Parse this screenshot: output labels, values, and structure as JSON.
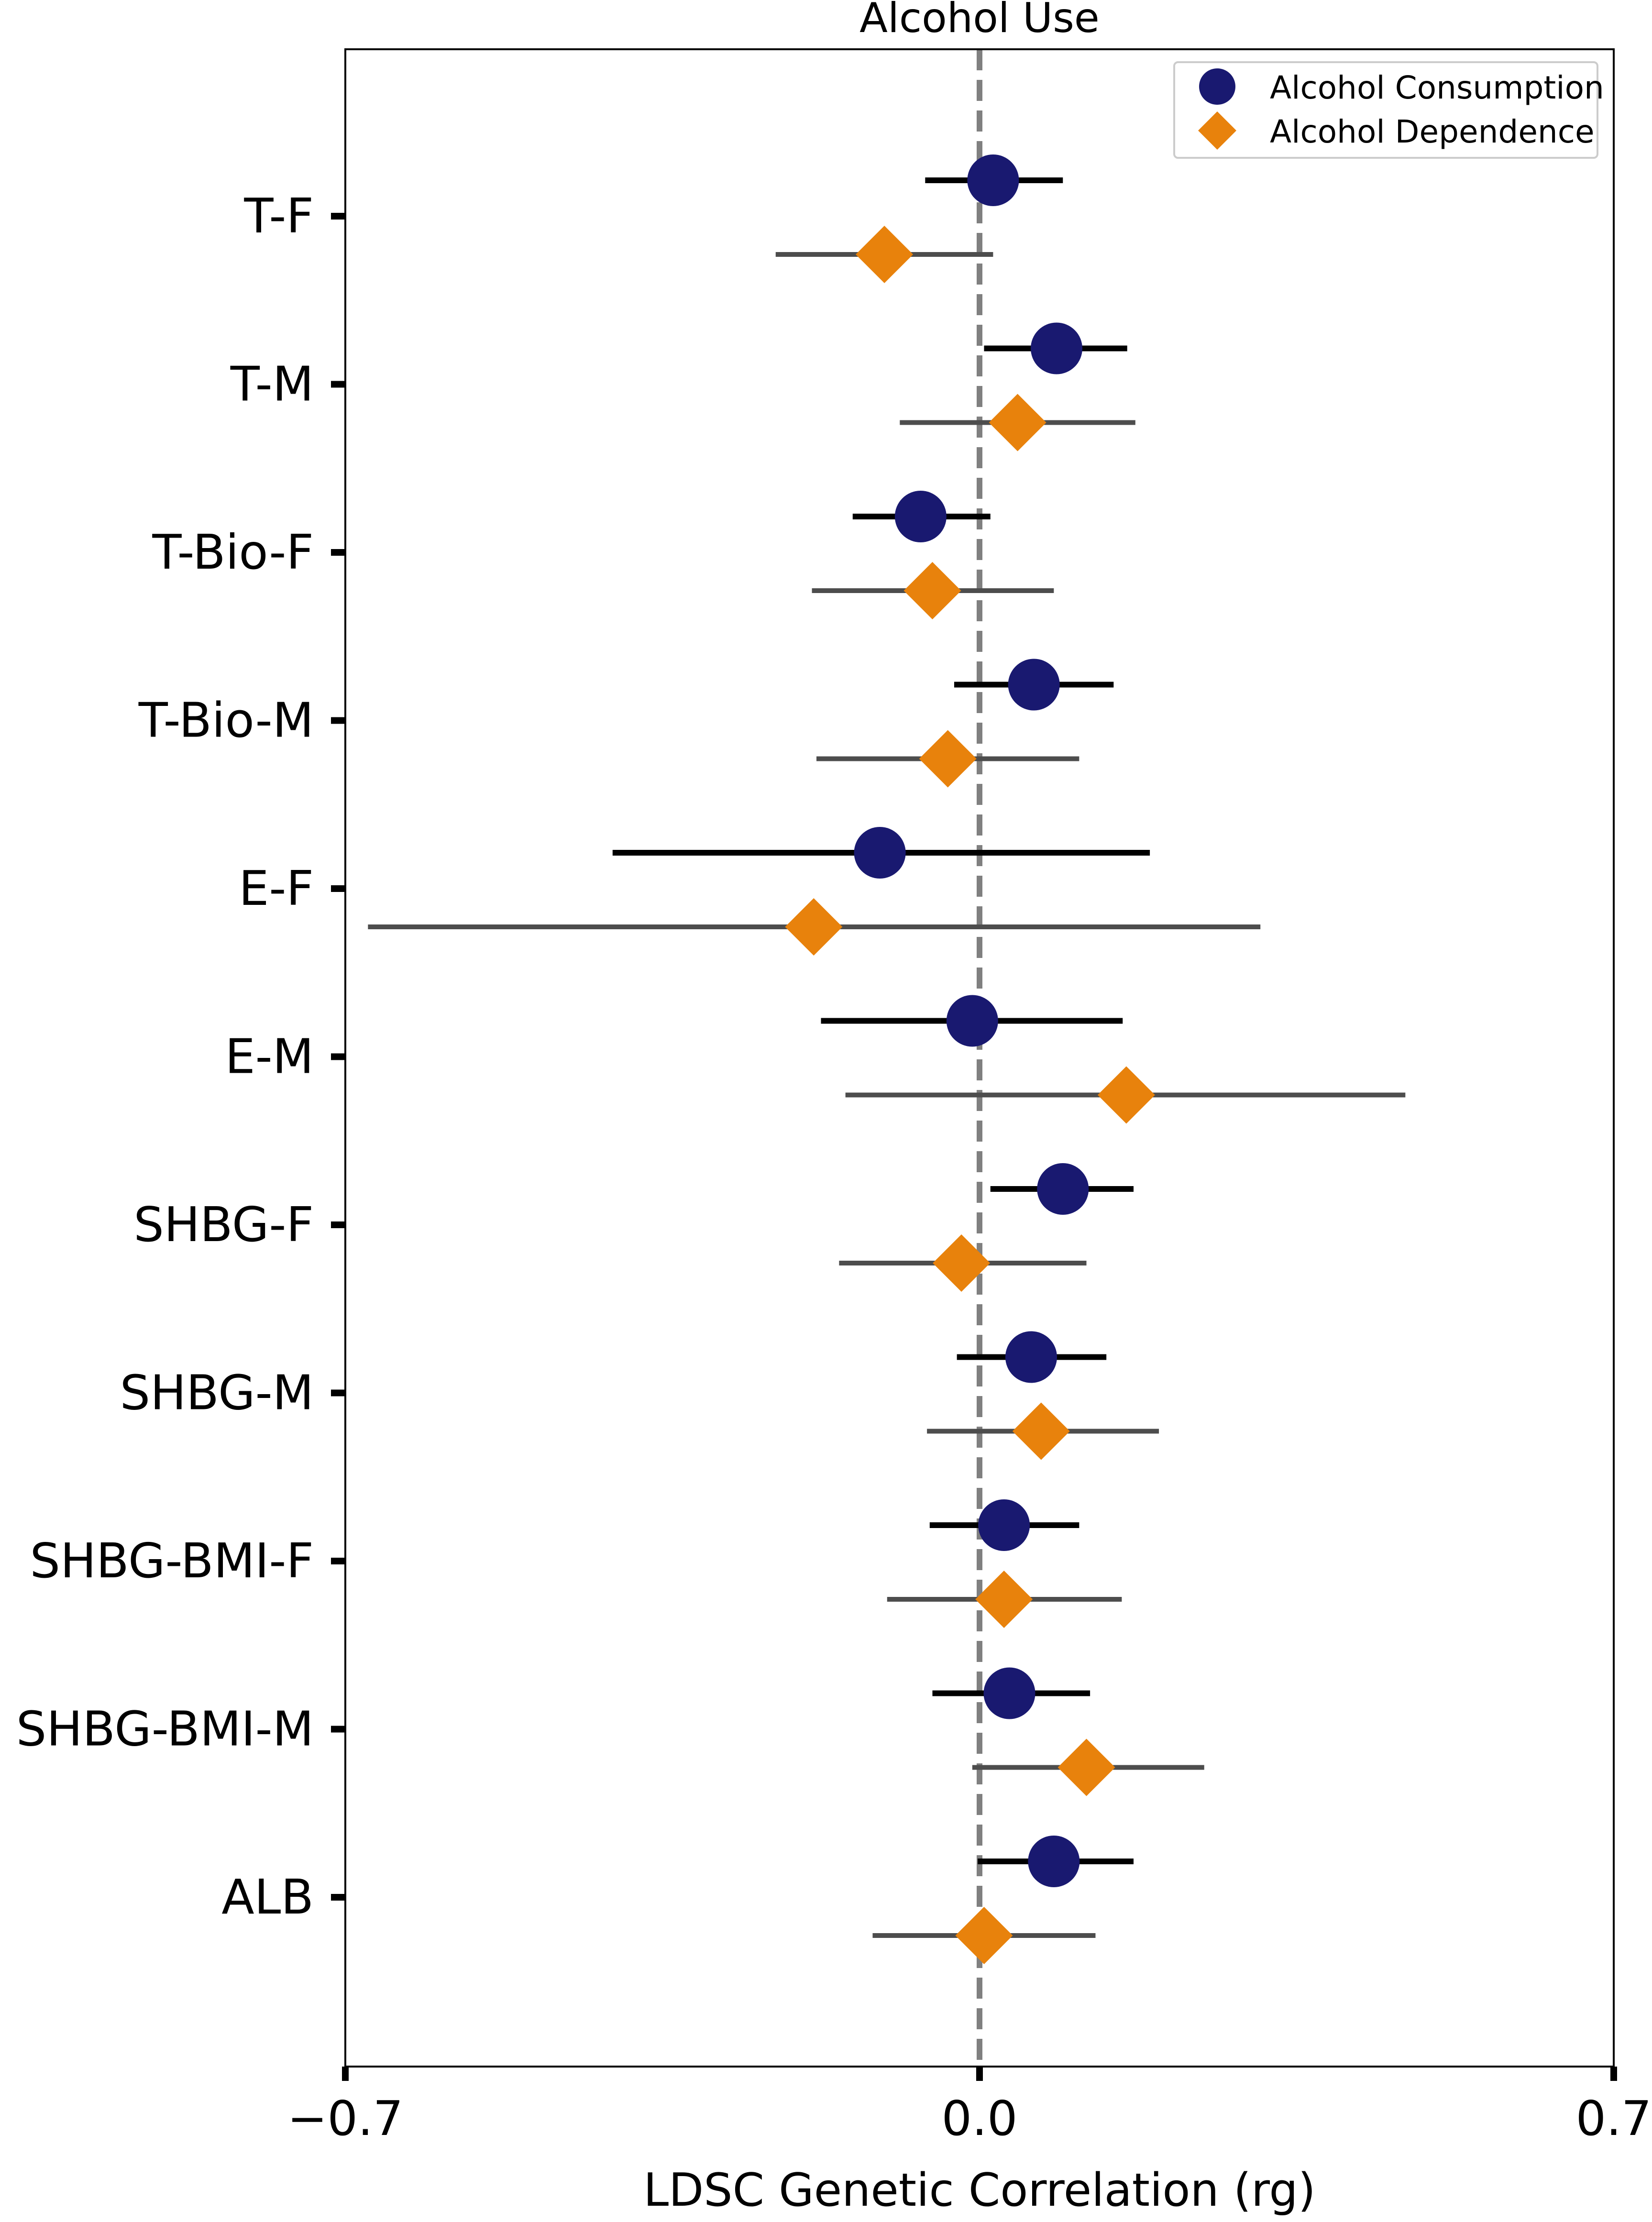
{
  "chart_data": {
    "type": "scatter",
    "title": "Alcohol Use",
    "xlabel": "LDSC Genetic Correlation (rg)",
    "ylabel": "",
    "xlim": [
      -0.7,
      0.7
    ],
    "xticks": [
      {
        "value": -0.7,
        "label": "−0.7"
      },
      {
        "value": 0.0,
        "label": "0.0"
      },
      {
        "value": 0.7,
        "label": "0.7"
      }
    ],
    "categories": [
      "T-F",
      "T-M",
      "T-Bio-F",
      "T-Bio-M",
      "E-F",
      "E-M",
      "SHBG-F",
      "SHBG-M",
      "SHBG-BMI-F",
      "SHBG-BMI-M",
      "ALB"
    ],
    "reference_line": {
      "x": 0.0,
      "style": "dashed",
      "color": "#808080"
    },
    "legend": {
      "position": "top-right"
    },
    "series": [
      {
        "name": "Alcohol Consumption",
        "marker": "circle",
        "color": "#191970",
        "errorbar_color": "#000000",
        "values": [
          0.015,
          0.085,
          -0.065,
          0.06,
          -0.11,
          -0.008,
          0.092,
          0.057,
          0.027,
          0.033,
          0.082
        ],
        "ci_low": [
          -0.06,
          0.005,
          -0.14,
          -0.028,
          -0.405,
          -0.175,
          0.012,
          -0.025,
          -0.055,
          -0.052,
          -0.002
        ],
        "ci_high": [
          0.092,
          0.163,
          0.012,
          0.148,
          0.188,
          0.158,
          0.17,
          0.14,
          0.11,
          0.122,
          0.17
        ]
      },
      {
        "name": "Alcohol Dependence",
        "marker": "diamond",
        "color": "#E8820C",
        "errorbar_color": "#4D4D4D",
        "values": [
          -0.105,
          0.042,
          -0.052,
          -0.035,
          -0.183,
          0.162,
          -0.02,
          0.068,
          0.027,
          0.118,
          0.005
        ],
        "ci_low": [
          -0.225,
          -0.088,
          -0.185,
          -0.18,
          -0.675,
          -0.148,
          -0.155,
          -0.058,
          -0.102,
          -0.008,
          -0.118
        ],
        "ci_high": [
          0.015,
          0.172,
          0.082,
          0.11,
          0.31,
          0.47,
          0.118,
          0.198,
          0.157,
          0.248,
          0.128
        ]
      }
    ]
  }
}
